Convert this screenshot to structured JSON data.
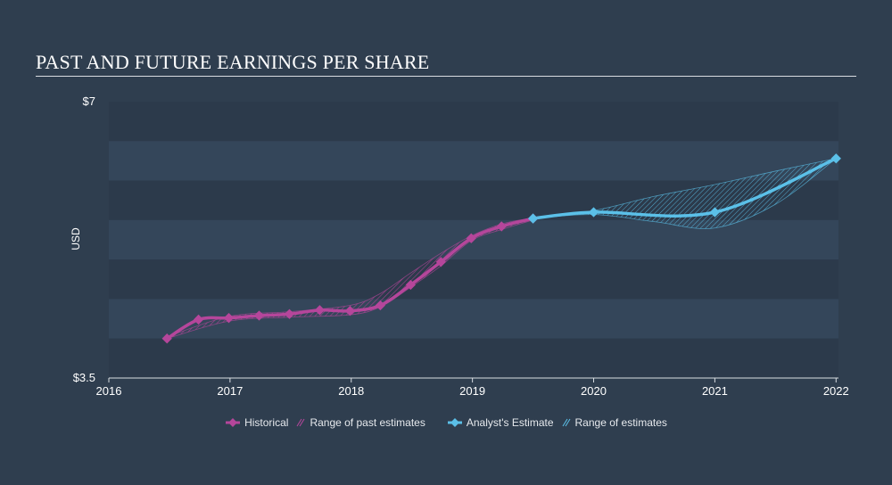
{
  "title": "PAST AND FUTURE EARNINGS PER SHARE",
  "chart_data": {
    "type": "line",
    "title": "PAST AND FUTURE EARNINGS PER SHARE",
    "xlabel": "",
    "ylabel": "USD",
    "ylim": [
      3.5,
      7
    ],
    "xlim": [
      2016,
      2022.02
    ],
    "y_tick_labels": [
      "$7",
      "$3.5"
    ],
    "y_tick_values": [
      7,
      3.5
    ],
    "x_tick_labels": [
      "2016",
      "2017",
      "2018",
      "2019",
      "2020",
      "2021",
      "2022"
    ],
    "x_tick_values": [
      2016,
      2017,
      2018,
      2019,
      2020,
      2021,
      2022
    ],
    "legend_position": "bottom-center",
    "grid": "horizontal bands",
    "series": [
      {
        "name": "Historical",
        "color": "#b5469b",
        "x": [
          2016.48,
          2016.74,
          2016.99,
          2017.24,
          2017.49,
          2017.74,
          2017.99,
          2018.24,
          2018.49,
          2018.74,
          2018.99,
          2019.24,
          2019.5
        ],
        "y": [
          4.0,
          4.24,
          4.26,
          4.29,
          4.31,
          4.36,
          4.35,
          4.42,
          4.68,
          4.97,
          5.27,
          5.42,
          5.52
        ]
      },
      {
        "name": "Analyst's Estimate",
        "color": "#5bc0e8",
        "x": [
          2019.5,
          2020.0,
          2021.0,
          2022.0
        ],
        "y": [
          5.52,
          5.6,
          5.6,
          6.28
        ]
      }
    ],
    "ranges": [
      {
        "name": "Range of past estimates",
        "color": "#b5469b",
        "x": [
          2016.48,
          2016.99,
          2017.49,
          2017.99,
          2018.24,
          2018.49,
          2018.74,
          2018.99,
          2019.24,
          2019.5
        ],
        "low": [
          4.0,
          4.22,
          4.27,
          4.3,
          4.4,
          4.65,
          4.92,
          5.24,
          5.38,
          5.5
        ],
        "high": [
          4.02,
          4.28,
          4.34,
          4.42,
          4.57,
          4.83,
          5.08,
          5.3,
          5.45,
          5.53
        ]
      },
      {
        "name": "Range of estimates",
        "color": "#5bc0e8",
        "x": [
          2019.5,
          2020.0,
          2020.5,
          2021.0,
          2021.5,
          2022.0
        ],
        "low": [
          5.52,
          5.57,
          5.48,
          5.4,
          5.7,
          6.28
        ],
        "high": [
          5.52,
          5.62,
          5.8,
          5.95,
          6.12,
          6.28
        ]
      }
    ]
  },
  "legend": {
    "historical": "Historical",
    "past_range": "Range of past estimates",
    "estimate": "Analyst's Estimate",
    "future_range": "Range of estimates"
  }
}
